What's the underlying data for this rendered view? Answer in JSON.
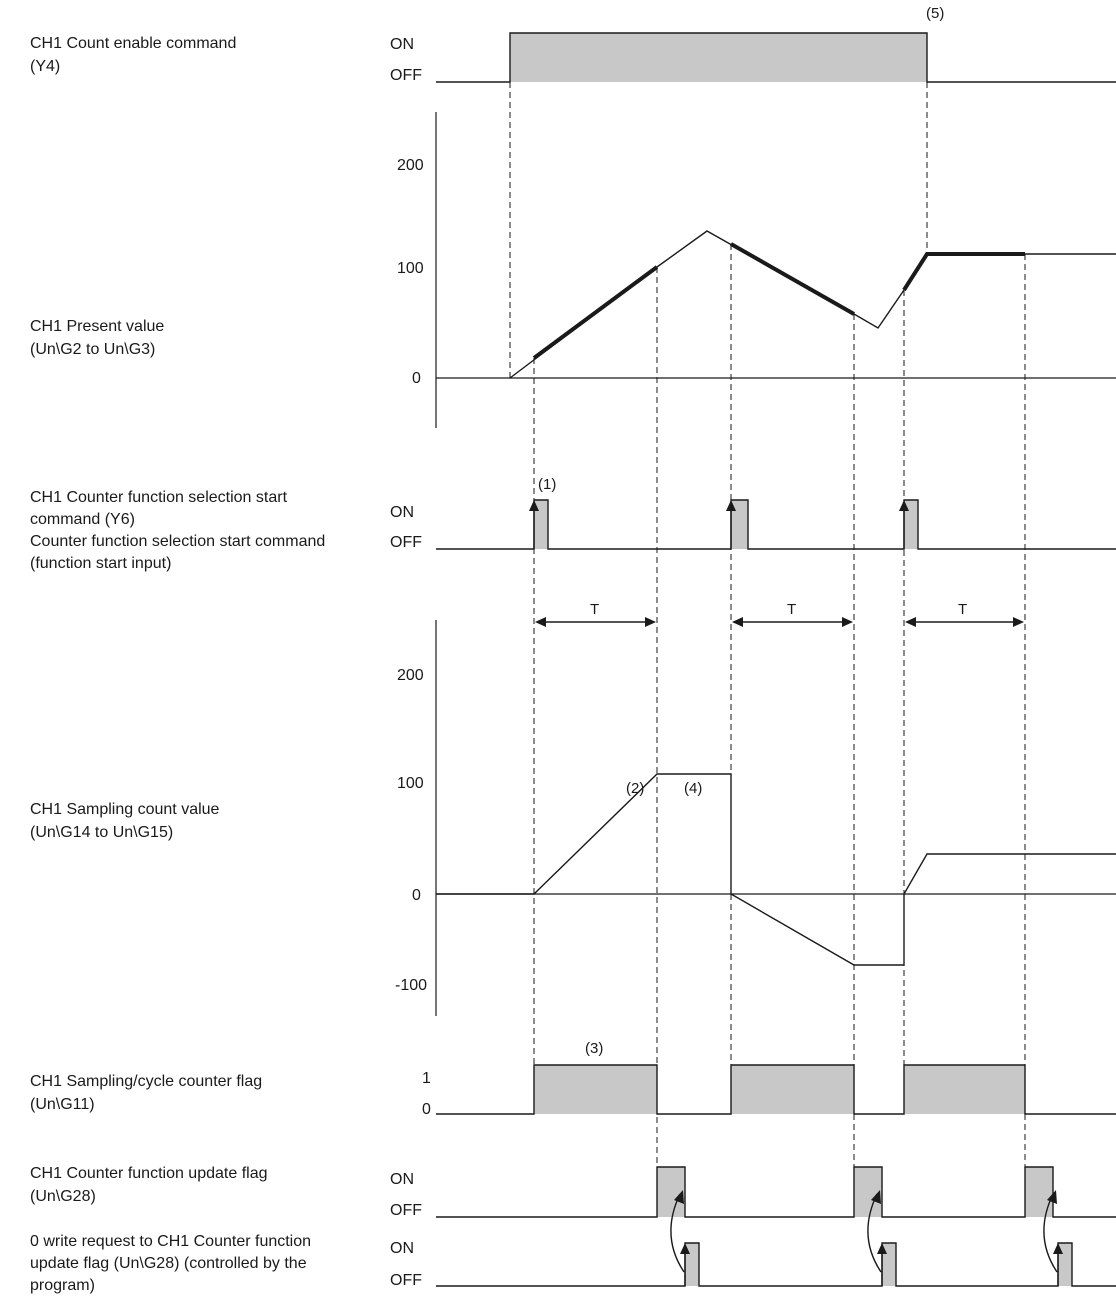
{
  "signals": {
    "count_enable": {
      "line1": "CH1 Count enable command",
      "line2": "(Y4)"
    },
    "present_value": {
      "line1": "CH1 Present value",
      "line2": "(Un\\G2 to Un\\G3)"
    },
    "start_command": {
      "line1": "CH1 Counter function selection start",
      "line2": "command (Y6)",
      "line3": "Counter function selection start command",
      "line4": "(function start input)"
    },
    "sampling_value": {
      "line1": "CH1 Sampling count value",
      "line2": "(Un\\G14 to Un\\G15)"
    },
    "cycle_flag": {
      "line1": "CH1 Sampling/cycle counter flag",
      "line2": "(Un\\G11)"
    },
    "update_flag": {
      "line1": "CH1 Counter function update flag",
      "line2": "(Un\\G28)"
    },
    "write_request": {
      "line1": "0 write request to CH1 Counter function",
      "line2": "update flag (Un\\G28) (controlled by the",
      "line3": "program)"
    }
  },
  "states": {
    "on": "ON",
    "off": "OFF",
    "one": "1",
    "zero": "0"
  },
  "axes": {
    "present_value": {
      "ticks": [
        "200",
        "100",
        "0"
      ]
    },
    "sampling_value": {
      "ticks": [
        "200",
        "100",
        "0",
        "-100"
      ]
    }
  },
  "annotations": {
    "n1": "(1)",
    "n2": "(2)",
    "n3": "(3)",
    "n4": "(4)",
    "n5": "(5)",
    "period": "T"
  },
  "colors": {
    "shade": "#c8c8c8",
    "line": "#1a1a1a"
  }
}
